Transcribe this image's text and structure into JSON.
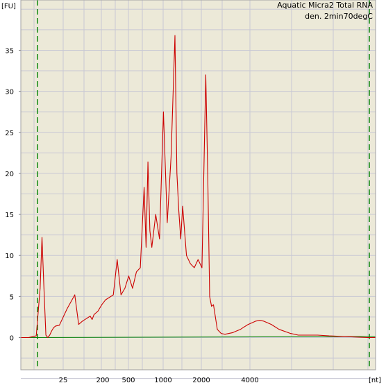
{
  "colors": {
    "plot_background": "#ece9d8",
    "page_background": "#ffffff",
    "grid": "#c8c8d4",
    "trace": "#cc0000",
    "baseline": "#008000",
    "marker_lines": "#008000"
  },
  "chart_data": {
    "type": "line",
    "title": "Aquatic Micra2 Total RNA",
    "subtitle": "den. 2min70degC",
    "ylabel": "[FU]",
    "xlabel": "[nt]",
    "ylim": [
      -4,
      40.5
    ],
    "y_ticks": [
      0,
      5,
      10,
      15,
      20,
      25,
      30,
      35
    ],
    "x_tick_labels": [
      "25",
      "200",
      "500",
      "1000",
      "2000",
      "4000"
    ],
    "grid": true,
    "x_scale": "sizing ladder (nonlinear)",
    "marker_positions": [
      "lower marker",
      "upper marker"
    ],
    "x": [
      0,
      0.1,
      0.2,
      0.3,
      0.4,
      0.5,
      0.55,
      0.6,
      0.65,
      0.7,
      0.75,
      0.8,
      0.85,
      0.9,
      1.0,
      1.2,
      1.4,
      1.5,
      1.6,
      1.7,
      1.8,
      1.85,
      1.9,
      1.95,
      2.0,
      2.1,
      2.2,
      2.4,
      2.5,
      2.6,
      2.7,
      2.8,
      2.9,
      3.0,
      3.1,
      3.2,
      3.25,
      3.3,
      3.35,
      3.4,
      3.5,
      3.6,
      3.7,
      3.8,
      3.9,
      4.0,
      4.05,
      4.1,
      4.15,
      4.2,
      4.3,
      4.4,
      4.5,
      4.6,
      4.7,
      4.8,
      4.85,
      4.9,
      4.95,
      5.0,
      5.1,
      5.2,
      5.3,
      5.4,
      5.5,
      5.6,
      5.7,
      5.8,
      5.9,
      6.0,
      6.1,
      6.2,
      6.3,
      6.5,
      6.7,
      7.0,
      7.2,
      7.5,
      7.7,
      8.0,
      8.5,
      9.0,
      9.2
    ],
    "y": [
      0,
      0,
      0,
      0.1,
      0.2,
      6,
      12.2,
      6,
      0.3,
      0,
      0.3,
      0.8,
      1.2,
      1.4,
      1.5,
      3.5,
      5.2,
      1.6,
      2.0,
      2.3,
      2.6,
      2.2,
      2.8,
      3.0,
      3.2,
      4.0,
      4.6,
      5.2,
      9.5,
      5.2,
      6.0,
      7.5,
      6.0,
      8.0,
      8.5,
      18.3,
      11.0,
      21.4,
      13.0,
      11.0,
      15.0,
      12.0,
      27.5,
      14.0,
      22.0,
      36.8,
      20.0,
      15.5,
      12.0,
      16.0,
      10.0,
      9.0,
      8.5,
      9.5,
      8.5,
      32.0,
      20.0,
      5.0,
      3.8,
      4.0,
      1.0,
      0.5,
      0.4,
      0.5,
      0.6,
      0.8,
      1.0,
      1.3,
      1.6,
      1.8,
      2.0,
      2.1,
      2.0,
      1.6,
      1.0,
      0.5,
      0.3,
      0.3,
      0.3,
      0.2,
      0.1,
      0,
      0
    ],
    "baseline_y": 0
  }
}
